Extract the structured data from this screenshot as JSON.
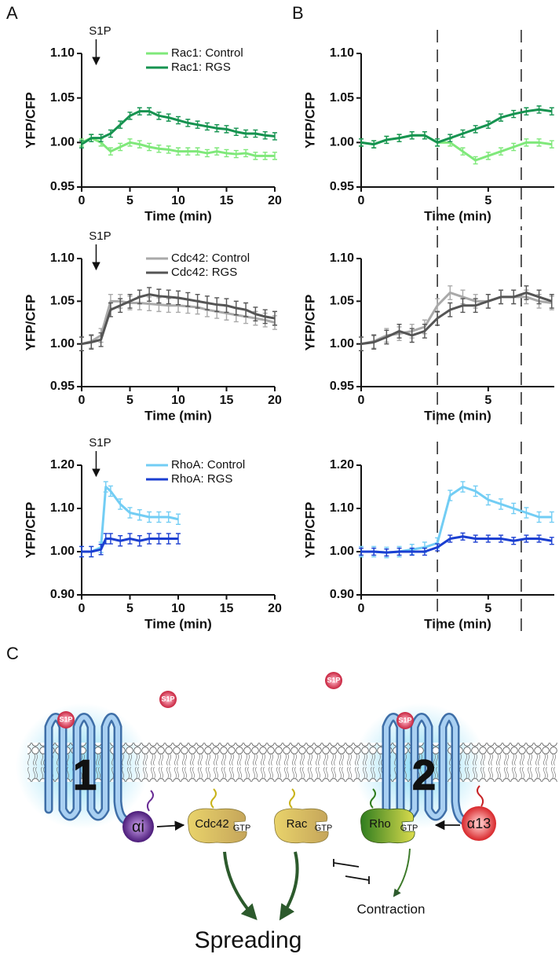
{
  "panels": [
    "A",
    "B",
    "C"
  ],
  "chart_data": [
    {
      "type": "line",
      "xlabel": "Time (min)",
      "ylabel": "YFP/CFP",
      "legend": "upper right",
      "annotation": {
        "text": "S1P",
        "x": 1.5
      },
      "x": [
        0,
        1,
        2,
        3,
        4,
        5,
        6,
        7,
        8,
        9,
        10,
        11,
        12,
        13,
        14,
        15,
        16,
        17,
        18,
        19,
        20
      ],
      "xlim": [
        0,
        20
      ],
      "xticks": [
        0,
        5,
        10,
        15,
        20
      ],
      "ylim": [
        0.95,
        1.1
      ],
      "yticks": [
        0.95,
        {
          "value": 1,
          "label": "1.00"
        },
        1.05,
        {
          "value": 1.1,
          "label": "1.10"
        }
      ],
      "series": [
        {
          "name": "Rac1: Control",
          "color": "#7fe87a",
          "error": 0.004,
          "values": [
            1.0,
            1.005,
            1.0,
            0.99,
            0.995,
            1.0,
            0.998,
            0.995,
            0.993,
            0.992,
            0.99,
            0.99,
            0.99,
            0.988,
            0.99,
            0.988,
            0.987,
            0.988,
            0.985,
            0.985,
            0.985
          ]
        },
        {
          "name": "Rac1: RGS",
          "color": "#169350",
          "error": 0.004,
          "values": [
            0.998,
            1.005,
            1.005,
            1.01,
            1.02,
            1.03,
            1.035,
            1.035,
            1.03,
            1.028,
            1.025,
            1.022,
            1.02,
            1.018,
            1.016,
            1.015,
            1.012,
            1.01,
            1.01,
            1.008,
            1.007
          ]
        }
      ]
    },
    {
      "type": "line",
      "xlabel": "Time (min)",
      "ylabel": "YFP/CFP",
      "legend": "upper right",
      "annotation": {
        "text": "S1P",
        "x": 1.5
      },
      "x": [
        0,
        1,
        2,
        3,
        4,
        5,
        6,
        7,
        8,
        9,
        10,
        11,
        12,
        13,
        14,
        15,
        16,
        17,
        18,
        19,
        20
      ],
      "xlim": [
        0,
        20
      ],
      "xticks": [
        0,
        5,
        10,
        15,
        20
      ],
      "ylim": [
        0.95,
        1.1
      ],
      "yticks": [
        0.95,
        {
          "value": 1,
          "label": "1.00"
        },
        1.05,
        {
          "value": 1.1,
          "label": "1.10"
        }
      ],
      "series": [
        {
          "name": "Cdc42: Control",
          "color": "#a9a9a9",
          "error": 0.008,
          "values": [
            1.0,
            1.003,
            1.01,
            1.05,
            1.05,
            1.048,
            1.048,
            1.047,
            1.046,
            1.045,
            1.045,
            1.044,
            1.043,
            1.04,
            1.038,
            1.036,
            1.034,
            1.032,
            1.03,
            1.028,
            1.025
          ]
        },
        {
          "name": "Cdc42: RGS",
          "color": "#555555",
          "error": 0.008,
          "values": [
            1.0,
            1.002,
            1.005,
            1.04,
            1.045,
            1.05,
            1.055,
            1.058,
            1.056,
            1.055,
            1.054,
            1.052,
            1.05,
            1.048,
            1.046,
            1.045,
            1.042,
            1.04,
            1.035,
            1.032,
            1.03
          ]
        }
      ]
    },
    {
      "type": "line",
      "xlabel": "Time (min)",
      "ylabel": "YFP/CFP",
      "legend": "upper right",
      "annotation": {
        "text": "S1P",
        "x": 1.5
      },
      "x": [
        0,
        1,
        2,
        2.5,
        3,
        4,
        5,
        6,
        7,
        8,
        9,
        10
      ],
      "xlim": [
        0,
        20
      ],
      "xticks": [
        0,
        5,
        10,
        15,
        20
      ],
      "ylim": [
        0.9,
        1.2
      ],
      "yticks": [
        {
          "value": 0.9,
          "label": "0.90"
        },
        {
          "value": 1,
          "label": "1.00"
        },
        {
          "value": 1.1,
          "label": "1.10"
        },
        {
          "value": 1.2,
          "label": "1.20"
        }
      ],
      "series": [
        {
          "name": "RhoA: Control",
          "color": "#72cdf4",
          "error": 0.012,
          "values": [
            1.0,
            1.0,
            1.01,
            1.15,
            1.14,
            1.11,
            1.09,
            1.085,
            1.08,
            1.08,
            1.08,
            1.075
          ]
        },
        {
          "name": "RhoA: RGS",
          "color": "#1b3fd1",
          "error": 0.012,
          "values": [
            1.0,
            1.0,
            1.005,
            1.03,
            1.03,
            1.025,
            1.03,
            1.025,
            1.03,
            1.03,
            1.03,
            1.03
          ]
        }
      ]
    },
    {
      "type": "line",
      "xlabel": "Time (min)",
      "ylabel": "YFP/CFP",
      "vlines": [
        3,
        6.3
      ],
      "x": [
        0,
        0.5,
        1,
        1.5,
        2,
        2.5,
        3,
        3.5,
        4,
        4.5,
        5,
        5.5,
        6,
        6.5,
        7,
        7.5
      ],
      "xlim": [
        0,
        7.6
      ],
      "xticks": [
        0,
        5
      ],
      "ylim": [
        0.95,
        1.1
      ],
      "yticks": [
        0.95,
        {
          "value": 1,
          "label": "1.00"
        },
        1.05,
        {
          "value": 1.1,
          "label": "1.10"
        }
      ],
      "series": [
        {
          "color": "#7fe87a",
          "error": 0.004,
          "values": [
            1.0,
            0.998,
            1.003,
            1.005,
            1.008,
            1.008,
            1.0,
            1.0,
            0.99,
            0.98,
            0.985,
            0.99,
            0.995,
            1.0,
            1.0,
            0.998
          ]
        },
        {
          "color": "#169350",
          "error": 0.004,
          "values": [
            1.0,
            0.998,
            1.003,
            1.005,
            1.008,
            1.008,
            1.0,
            1.005,
            1.01,
            1.015,
            1.02,
            1.028,
            1.032,
            1.035,
            1.037,
            1.035
          ]
        }
      ]
    },
    {
      "type": "line",
      "xlabel": "Time (min)",
      "ylabel": "YFP/CFP",
      "vlines": [
        3,
        6.3
      ],
      "x": [
        0,
        0.5,
        1,
        1.5,
        2,
        2.5,
        3,
        3.5,
        4,
        4.5,
        5,
        5.5,
        6,
        6.5,
        7,
        7.5
      ],
      "xlim": [
        0,
        7.6
      ],
      "xticks": [
        0,
        5
      ],
      "ylim": [
        0.95,
        1.1
      ],
      "yticks": [
        0.95,
        {
          "value": 1,
          "label": "1.00"
        },
        1.05,
        {
          "value": 1.1,
          "label": "1.10"
        }
      ],
      "series": [
        {
          "color": "#a9a9a9",
          "error": 0.008,
          "values": [
            1.0,
            1.003,
            1.01,
            1.012,
            1.015,
            1.02,
            1.045,
            1.06,
            1.055,
            1.05,
            1.05,
            1.055,
            1.055,
            1.055,
            1.05,
            1.048
          ]
        },
        {
          "color": "#555555",
          "error": 0.008,
          "values": [
            1.0,
            1.002,
            1.008,
            1.015,
            1.01,
            1.015,
            1.03,
            1.04,
            1.045,
            1.045,
            1.05,
            1.055,
            1.055,
            1.06,
            1.055,
            1.05
          ]
        }
      ]
    },
    {
      "type": "line",
      "xlabel": "Time (min)",
      "ylabel": "YFP/CFP",
      "vlines": [
        3,
        6.3
      ],
      "x": [
        0,
        0.5,
        1,
        1.5,
        2,
        2.5,
        3,
        3.5,
        4,
        4.5,
        5,
        5.5,
        6,
        6.5,
        7,
        7.5
      ],
      "xlim": [
        0,
        7.6
      ],
      "xticks": [
        0,
        5
      ],
      "ylim": [
        0.9,
        1.2
      ],
      "yticks": [
        {
          "value": 0.9,
          "label": "0.90"
        },
        {
          "value": 1,
          "label": "1.00"
        },
        {
          "value": 1.1,
          "label": "1.10"
        },
        {
          "value": 1.2,
          "label": "1.20"
        }
      ],
      "series": [
        {
          "color": "#72cdf4",
          "error": 0.012,
          "values": [
            1.0,
            1.0,
            0.998,
            1.0,
            1.005,
            1.01,
            1.02,
            1.13,
            1.15,
            1.14,
            1.12,
            1.11,
            1.1,
            1.09,
            1.08,
            1.08
          ]
        },
        {
          "color": "#1b3fd1",
          "error": 0.008,
          "values": [
            1.0,
            1.0,
            0.998,
            1.0,
            1.0,
            1.0,
            1.01,
            1.03,
            1.035,
            1.03,
            1.03,
            1.03,
            1.025,
            1.03,
            1.03,
            1.025
          ]
        }
      ]
    }
  ],
  "diagram": {
    "ligands": [
      "S1P",
      "S1P",
      "S1P",
      "S1P"
    ],
    "receptors": [
      "1",
      "2"
    ],
    "g_proteins": [
      "αi",
      "α13"
    ],
    "gtpases": [
      {
        "name": "Cdc42",
        "state": "GTP"
      },
      {
        "name": "Rac",
        "state": "GTP"
      },
      {
        "name": "Rho",
        "state": "GTP"
      }
    ],
    "outcomes": [
      "Spreading",
      "Contraction"
    ]
  }
}
